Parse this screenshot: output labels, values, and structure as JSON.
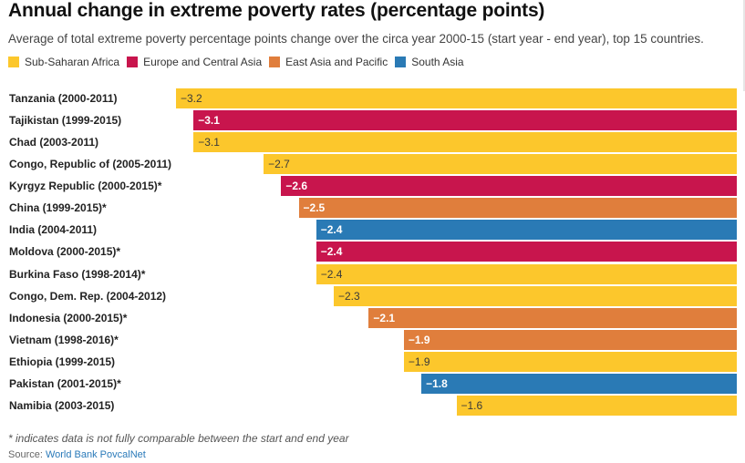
{
  "chart_data": {
    "type": "bar",
    "orientation": "horizontal",
    "title": "Annual change in extreme poverty rates (percentage points)",
    "subtitle": "Average of total extreme poverty percentage points change over the circa year 2000-15 (start year - end year), top 15 countries.",
    "xlim": [
      -3.2,
      0
    ],
    "grid": false,
    "legend_placement": "top-left",
    "legend": [
      {
        "key": "ssa",
        "label": "Sub-Saharan Africa",
        "color": "#fcc72c"
      },
      {
        "key": "eca",
        "label": "Europe and Central Asia",
        "color": "#c8154d"
      },
      {
        "key": "eap",
        "label": "East Asia and Pacific",
        "color": "#e07e3c"
      },
      {
        "key": "sa",
        "label": "South Asia",
        "color": "#2a7ab5"
      }
    ],
    "categories": [
      "Tanzania (2000-2011)",
      "Tajikistan (1999-2015)",
      "Chad (2003-2011)",
      "Congo, Republic of (2005-2011)",
      "Kyrgyz Republic (2000-2015)*",
      "China (1999-2015)*",
      "India (2004-2011)",
      "Moldova (2000-2015)*",
      "Burkina Faso (1998-2014)*",
      "Congo, Dem. Rep. (2004-2012)",
      "Indonesia (2000-2015)*",
      "Vietnam (1998-2016)*",
      "Ethiopia (1999-2015)",
      "Pakistan (2001-2015)*",
      "Namibia (2003-2015)"
    ],
    "values": [
      -3.2,
      -3.1,
      -3.1,
      -2.7,
      -2.6,
      -2.5,
      -2.4,
      -2.4,
      -2.4,
      -2.3,
      -2.1,
      -1.9,
      -1.9,
      -1.8,
      -1.6
    ],
    "value_labels": [
      "−3.2",
      "−3.1",
      "−3.1",
      "−2.7",
      "−2.6",
      "−2.5",
      "−2.4",
      "−2.4",
      "−2.4",
      "−2.3",
      "−2.1",
      "−1.9",
      "−1.9",
      "−1.8",
      "−1.6"
    ],
    "regions": [
      "ssa",
      "eca",
      "ssa",
      "ssa",
      "eca",
      "eap",
      "sa",
      "eca",
      "ssa",
      "ssa",
      "eap",
      "eap",
      "ssa",
      "sa",
      "ssa"
    ]
  },
  "footnote": "* indicates data is not fully comparable between the start and end year",
  "source": {
    "prefix": "Source: ",
    "name": "World Bank PovcalNet"
  }
}
